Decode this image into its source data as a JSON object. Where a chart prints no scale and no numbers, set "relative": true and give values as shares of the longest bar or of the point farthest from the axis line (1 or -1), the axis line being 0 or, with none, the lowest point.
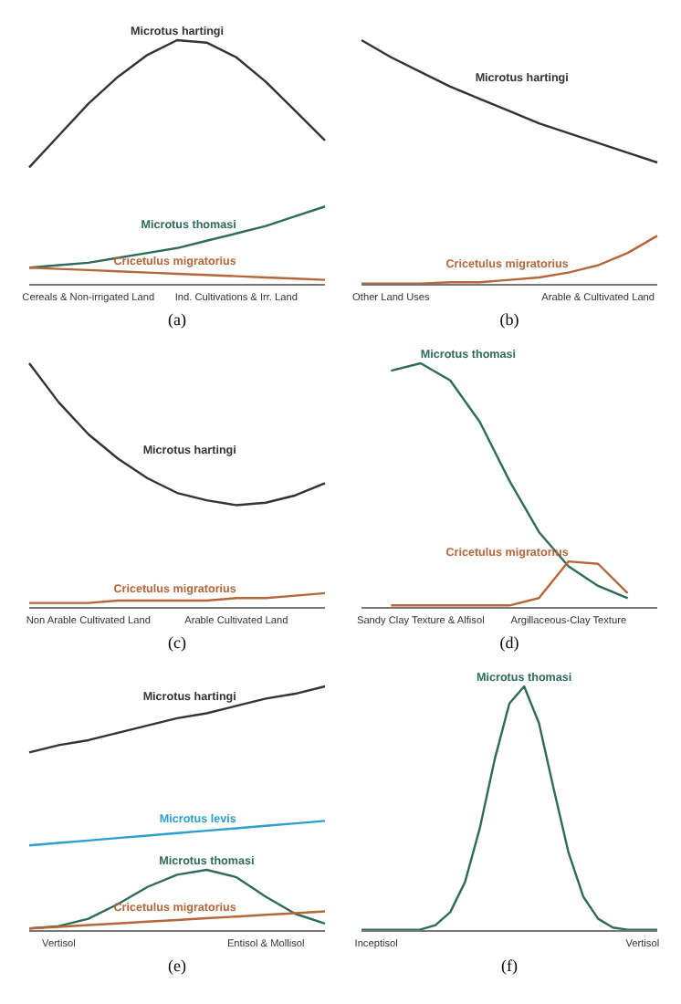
{
  "chart_data": [
    {
      "type": "line",
      "title": "(a)",
      "relative": true,
      "categories": [
        null,
        null,
        "Cereals & Non-irrigated Land",
        null,
        null,
        null,
        null,
        "Ind. Cultivations & Irr. Land",
        null,
        null,
        null
      ],
      "series": [
        {
          "name": "Microtus hartingi",
          "color": "#333333",
          "values": [
            0.48,
            0.61,
            0.74,
            0.85,
            0.94,
            1.0,
            0.99,
            0.93,
            0.83,
            0.71,
            0.59
          ]
        },
        {
          "name": "Microtus thomasi",
          "color": "#2e6b5a",
          "values": [
            0.07,
            0.08,
            0.09,
            0.11,
            0.13,
            0.15,
            0.18,
            0.21,
            0.24,
            0.28,
            0.32
          ]
        },
        {
          "name": "Cricetulus migratorius",
          "color": "#b5673a",
          "values": [
            0.07,
            0.065,
            0.06,
            0.055,
            0.05,
            0.045,
            0.04,
            0.035,
            0.03,
            0.025,
            0.02
          ]
        }
      ]
    },
    {
      "type": "line",
      "title": "(b)",
      "relative": true,
      "categories": [
        null,
        "Other Land Uses",
        null,
        null,
        null,
        null,
        null,
        null,
        "Arable & Cultivated Land",
        null,
        null
      ],
      "series": [
        {
          "name": "Microtus hartingi",
          "color": "#333333",
          "values": [
            1.0,
            0.93,
            0.87,
            0.81,
            0.76,
            0.71,
            0.66,
            0.62,
            0.58,
            0.54,
            0.5
          ]
        },
        {
          "name": "Cricetulus migratorius",
          "color": "#b5673a",
          "values": [
            0.005,
            0.005,
            0.005,
            0.01,
            0.01,
            0.02,
            0.03,
            0.05,
            0.08,
            0.13,
            0.2
          ]
        }
      ]
    },
    {
      "type": "line",
      "title": "(c)",
      "relative": true,
      "categories": [
        null,
        null,
        "Non Arable Cultivated Land",
        null,
        null,
        null,
        null,
        "Arable Cultivated Land",
        null,
        null,
        null
      ],
      "series": [
        {
          "name": "Microtus hartingi",
          "color": "#333333",
          "values": [
            1.0,
            0.84,
            0.71,
            0.61,
            0.53,
            0.47,
            0.44,
            0.42,
            0.43,
            0.46,
            0.51
          ]
        },
        {
          "name": "Cricetulus migratorius",
          "color": "#b5673a",
          "values": [
            0.02,
            0.02,
            0.02,
            0.03,
            0.03,
            0.03,
            0.03,
            0.04,
            0.04,
            0.05,
            0.06
          ]
        }
      ]
    },
    {
      "type": "line",
      "title": "(d)",
      "relative": true,
      "categories": [
        null,
        null,
        "Sandy Clay Texture & Alfisol",
        null,
        null,
        null,
        null,
        "Argillaceous-Clay Texture",
        null,
        null,
        null
      ],
      "series": [
        {
          "name": "Microtus thomasi",
          "color": "#2e6b5a",
          "values": [
            null,
            0.97,
            1.0,
            0.93,
            0.76,
            0.52,
            0.31,
            0.17,
            0.09,
            0.04,
            null
          ]
        },
        {
          "name": "Cricetulus migratorius",
          "color": "#b5673a",
          "values": [
            null,
            0.01,
            0.01,
            0.01,
            0.01,
            0.01,
            0.04,
            0.19,
            0.18,
            0.06,
            null
          ]
        }
      ]
    },
    {
      "type": "line",
      "title": "(e)",
      "relative": true,
      "categories": [
        null,
        "Vertisol",
        null,
        null,
        null,
        null,
        null,
        null,
        "Entisol & Mollisol",
        null,
        null
      ],
      "series": [
        {
          "name": "Microtus hartingi",
          "color": "#333333",
          "values": [
            0.73,
            0.76,
            0.78,
            0.81,
            0.84,
            0.87,
            0.89,
            0.92,
            0.95,
            0.97,
            1.0
          ]
        },
        {
          "name": "Microtus levis",
          "color": "#2a9fd0",
          "values": [
            0.35,
            0.36,
            0.37,
            0.38,
            0.39,
            0.4,
            0.41,
            0.42,
            0.43,
            0.44,
            0.45
          ]
        },
        {
          "name": "Microtus thomasi",
          "color": "#2e6b5a",
          "values": [
            0.01,
            0.02,
            0.05,
            0.11,
            0.18,
            0.23,
            0.25,
            0.22,
            0.14,
            0.07,
            0.03
          ]
        },
        {
          "name": "Cricetulus migratorius",
          "color": "#b5673a",
          "values": [
            0.01,
            0.017,
            0.024,
            0.031,
            0.038,
            0.045,
            0.052,
            0.059,
            0.066,
            0.073,
            0.08
          ]
        }
      ]
    },
    {
      "type": "line",
      "title": "(f)",
      "relative": true,
      "categories": [
        null,
        "Inceptisol",
        null,
        null,
        null,
        null,
        null,
        null,
        null,
        null,
        null,
        null,
        null,
        null,
        null,
        null,
        null,
        null,
        null,
        "Vertisol",
        null
      ],
      "series": [
        {
          "name": "Microtus thomasi",
          "color": "#2e6b5a",
          "values": [
            0.005,
            0.005,
            0.005,
            0.005,
            0.006,
            0.024,
            0.077,
            0.2,
            0.42,
            0.7,
            0.93,
            1.0,
            0.85,
            0.58,
            0.32,
            0.14,
            0.05,
            0.014,
            0.005,
            0.005,
            0.005
          ]
        }
      ]
    }
  ]
}
